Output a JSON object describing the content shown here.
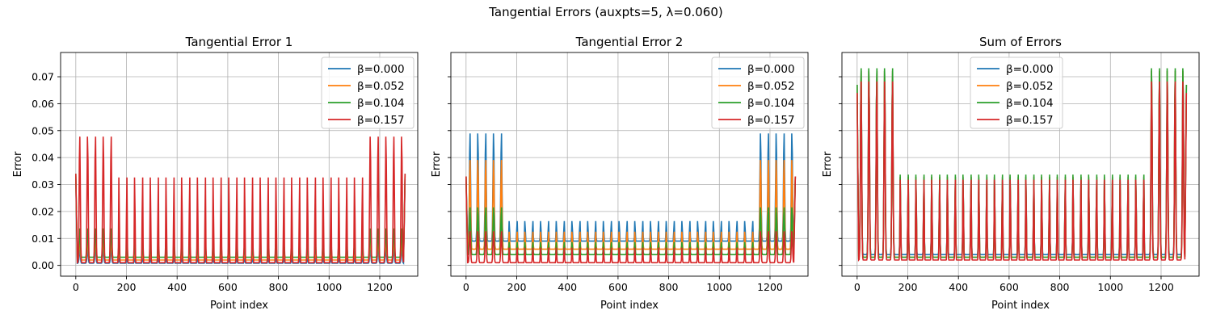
{
  "figure": {
    "title": "Tangential Errors (auxpts=5, λ=0.060)"
  },
  "series_colors": [
    "#1f77b4",
    "#ff7f0e",
    "#2ca02c",
    "#d62728"
  ],
  "chart_data": [
    {
      "type": "line",
      "title": "Tangential Error 1",
      "xlabel": "Point index",
      "ylabel": "Error",
      "xlim": [
        -60,
        1350
      ],
      "ylim": [
        -0.004,
        0.079
      ],
      "xticks": [
        0,
        200,
        400,
        600,
        800,
        1000,
        1200
      ],
      "yticks": [
        0.0,
        0.01,
        0.02,
        0.03,
        0.04,
        0.05,
        0.06,
        0.07
      ],
      "ytick_labels": [
        "0.00",
        "0.01",
        "0.02",
        "0.03",
        "0.04",
        "0.05",
        "0.06",
        "0.07"
      ],
      "grid": true,
      "legend": "top-right",
      "series": [
        {
          "name": "β=0.000",
          "base": 0.0008,
          "peak": 0.004,
          "edge_peak": 0.006,
          "end": 0.032
        },
        {
          "name": "β=0.052",
          "base": 0.002,
          "peak": 0.007,
          "edge_peak": 0.01,
          "end": 0.033
        },
        {
          "name": "β=0.104",
          "base": 0.003,
          "peak": 0.01,
          "edge_peak": 0.014,
          "end": 0.034
        },
        {
          "name": "β=0.157",
          "base": 0.001,
          "peak": 0.035,
          "edge_peak": 0.049,
          "end": 0.034
        }
      ]
    },
    {
      "type": "line",
      "title": "Tangential Error 2",
      "xlabel": "Point index",
      "ylabel": "Error",
      "xlim": [
        -60,
        1350
      ],
      "ylim": [
        -0.004,
        0.079
      ],
      "xticks": [
        0,
        200,
        400,
        600,
        800,
        1000,
        1200
      ],
      "yticks": [
        0.0,
        0.01,
        0.02,
        0.03,
        0.04,
        0.05,
        0.06,
        0.07
      ],
      "grid": true,
      "legend": "top-right",
      "series": [
        {
          "name": "β=0.000",
          "base": 0.009,
          "peak": 0.017,
          "edge_peak": 0.05,
          "end": 0.033
        },
        {
          "name": "β=0.052",
          "base": 0.006,
          "peak": 0.013,
          "edge_peak": 0.04,
          "end": 0.033
        },
        {
          "name": "β=0.104",
          "base": 0.004,
          "peak": 0.009,
          "edge_peak": 0.022,
          "end": 0.033
        },
        {
          "name": "β=0.157",
          "base": 0.001,
          "peak": 0.007,
          "edge_peak": 0.013,
          "end": 0.033
        }
      ]
    },
    {
      "type": "line",
      "title": "Sum of Errors",
      "xlabel": "Point index",
      "ylabel": "Error",
      "xlim": [
        -60,
        1350
      ],
      "ylim": [
        -0.004,
        0.079
      ],
      "xticks": [
        0,
        200,
        400,
        600,
        800,
        1000,
        1200
      ],
      "yticks": [
        0.0,
        0.01,
        0.02,
        0.03,
        0.04,
        0.05,
        0.06,
        0.07
      ],
      "grid": true,
      "legend": "top-center",
      "series": [
        {
          "name": "β=0.000",
          "base": 0.004,
          "peak": 0.035,
          "edge_peak": 0.074,
          "end": 0.067
        },
        {
          "name": "β=0.052",
          "base": 0.003,
          "peak": 0.035,
          "edge_peak": 0.074,
          "end": 0.067
        },
        {
          "name": "β=0.104",
          "base": 0.003,
          "peak": 0.036,
          "edge_peak": 0.075,
          "end": 0.067
        },
        {
          "name": "β=0.157",
          "base": 0.002,
          "peak": 0.034,
          "edge_peak": 0.07,
          "end": 0.064
        }
      ]
    }
  ]
}
